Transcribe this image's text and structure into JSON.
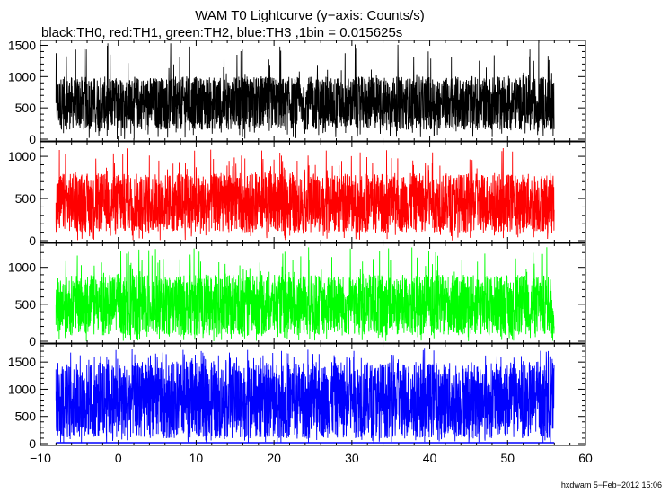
{
  "title": "WAM T0 Lightcurve (y−axis: Counts/s)",
  "subtitle": "black:TH0, red:TH1, green:TH2, blue:TH3 ,1bin = 0.015625s",
  "footer": "hxdwam  5−Feb−2012 15:06",
  "chart_data": {
    "type": "line",
    "xlabel": "",
    "ylabel": "",
    "xlim": [
      -10,
      60
    ],
    "x_ticks": [
      "−10",
      "0",
      "10",
      "20",
      "30",
      "40",
      "50",
      "60"
    ],
    "x_tick_values": [
      -10,
      0,
      10,
      20,
      30,
      40,
      50,
      60
    ],
    "x_range_of_data": [
      -8,
      56
    ],
    "panels": [
      {
        "name": "TH0",
        "color": "#000000",
        "ylim": [
          0,
          1550
        ],
        "y_ticks": [
          "0",
          "500",
          "1000",
          "1500"
        ],
        "y_tick_values": [
          0,
          500,
          1000,
          1500
        ],
        "typical_low": 150,
        "typical_high": 1000,
        "max_peak": 1550
      },
      {
        "name": "TH1",
        "color": "#ff0000",
        "ylim": [
          0,
          1150
        ],
        "y_ticks": [
          "0",
          "500",
          "1000"
        ],
        "y_tick_values": [
          0,
          500,
          1000
        ],
        "typical_low": 100,
        "typical_high": 800,
        "max_peak": 1100
      },
      {
        "name": "TH2",
        "color": "#00ff00",
        "ylim": [
          0,
          1300
        ],
        "y_ticks": [
          "0",
          "500",
          "1000"
        ],
        "y_tick_values": [
          0,
          500,
          1000
        ],
        "typical_low": 80,
        "typical_high": 900,
        "max_peak": 1280
      },
      {
        "name": "TH3",
        "color": "#0000ff",
        "ylim": [
          0,
          1800
        ],
        "y_ticks": [
          "0",
          "500",
          "1000",
          "1500"
        ],
        "y_tick_values": [
          0,
          500,
          1000,
          1500
        ],
        "typical_low": 100,
        "typical_high": 1500,
        "max_peak": 1750
      }
    ]
  }
}
